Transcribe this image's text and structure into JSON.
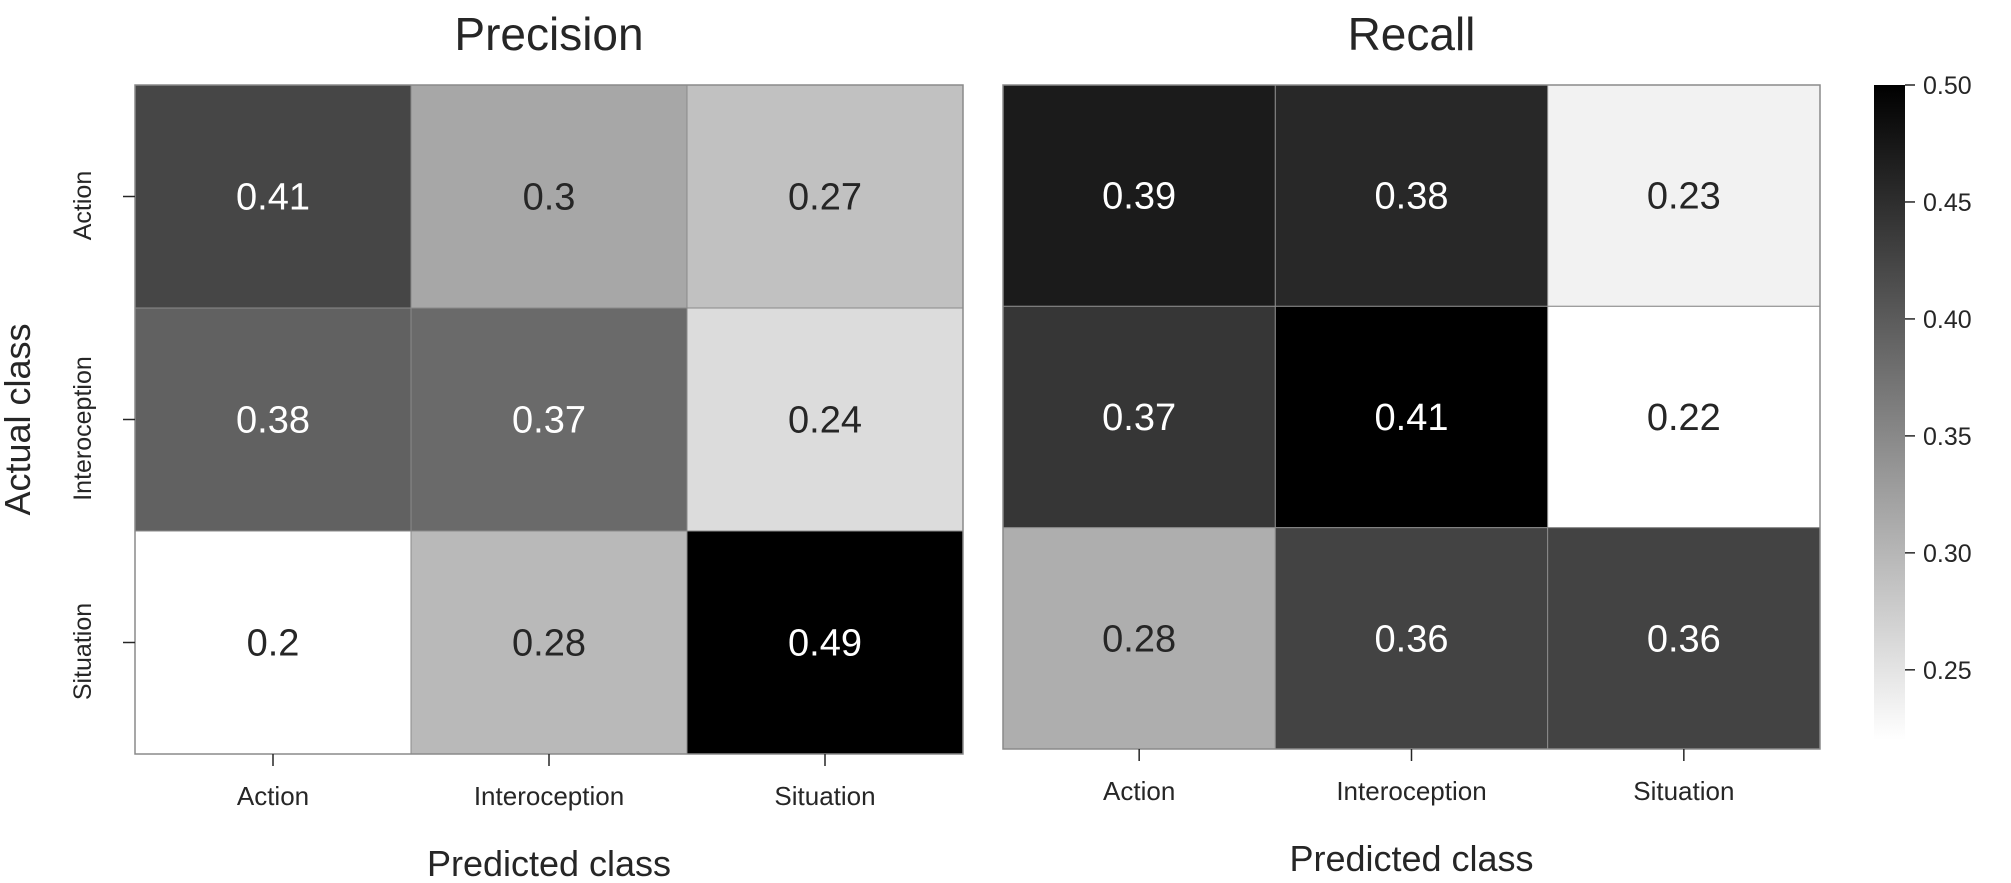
{
  "chart_data": {
    "type": "heatmap",
    "shared_y_label": "Actual class",
    "row_labels": [
      "Action",
      "Interoception",
      "Situation"
    ],
    "col_labels": [
      "Action",
      "Interoception",
      "Situation"
    ],
    "panels": [
      {
        "title": "Precision",
        "xlabel": "Predicted class",
        "values": [
          [
            0.41,
            0.3,
            0.27
          ],
          [
            0.38,
            0.37,
            0.24
          ],
          [
            0.2,
            0.28,
            0.49
          ]
        ],
        "value_labels": [
          [
            "0.41",
            "0.3",
            "0.27"
          ],
          [
            "0.38",
            "0.37",
            "0.24"
          ],
          [
            "0.2",
            "0.28",
            "0.49"
          ]
        ],
        "scale": [
          0.2,
          0.49
        ]
      },
      {
        "title": "Recall",
        "xlabel": "Predicted class",
        "values": [
          [
            0.39,
            0.38,
            0.23
          ],
          [
            0.37,
            0.41,
            0.22
          ],
          [
            0.28,
            0.36,
            0.36
          ]
        ],
        "value_labels": [
          [
            "0.39",
            "0.38",
            "0.23"
          ],
          [
            "0.37",
            "0.41",
            "0.22"
          ],
          [
            "0.28",
            "0.36",
            "0.36"
          ]
        ],
        "scale": [
          0.22,
          0.41
        ]
      }
    ],
    "colorbar": {
      "range": [
        0.22,
        0.5
      ],
      "ticks": [
        0.25,
        0.3,
        0.35,
        0.4,
        0.45,
        0.5
      ],
      "tick_labels": [
        "0.25",
        "0.30",
        "0.35",
        "0.40",
        "0.45",
        "0.50"
      ],
      "colormap": "white-to-black",
      "placement": "right"
    }
  }
}
